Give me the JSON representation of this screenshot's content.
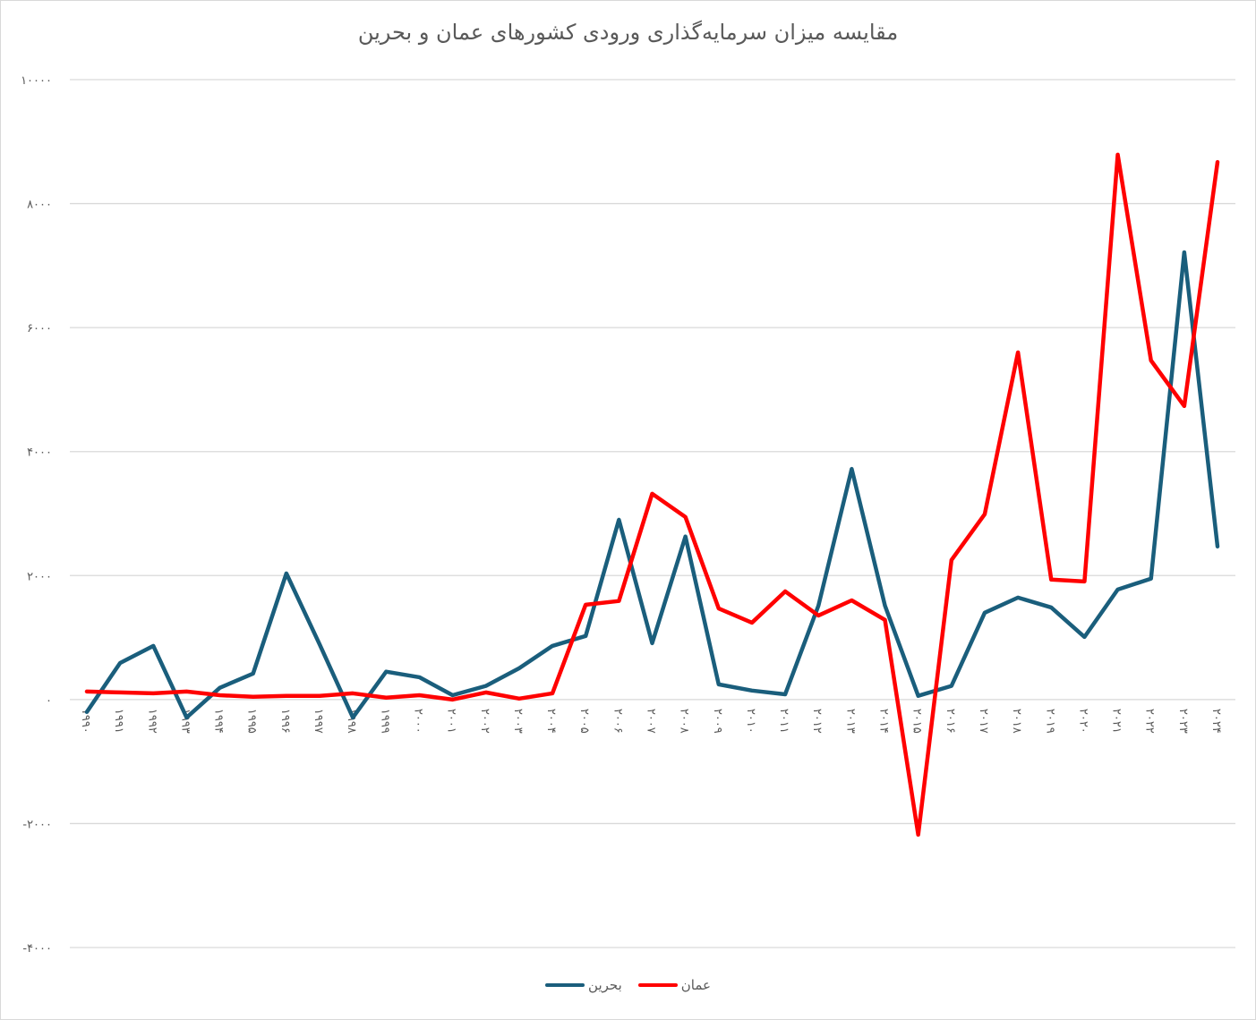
{
  "chart_data": {
    "type": "line",
    "title": "مقایسه میزان سرمایه‌گذاری ورودی کشورهای عمان و بحرین",
    "xlabel": "",
    "ylabel": "",
    "ylim": [
      -4000,
      10000
    ],
    "yticks": [
      -4000,
      -2000,
      0,
      2000,
      4000,
      6000,
      8000,
      10000
    ],
    "ytick_labels": [
      "-۴۰۰۰",
      "-۲۰۰۰",
      "۰",
      "۲۰۰۰",
      "۴۰۰۰",
      "۶۰۰۰",
      "۸۰۰۰",
      "۱۰۰۰۰"
    ],
    "categories": [
      "۱۹۹۰",
      "۱۹۹۱",
      "۱۹۹۲",
      "۱۹۹۳",
      "۱۹۹۴",
      "۱۹۹۵",
      "۱۹۹۶",
      "۱۹۹۷",
      "۱۹۹۸",
      "۱۹۹۹",
      "۲۰۰۰",
      "۲۰۰۱",
      "۲۰۰۲",
      "۲۰۰۳",
      "۲۰۰۴",
      "۲۰۰۵",
      "۲۰۰۶",
      "۲۰۰۷",
      "۲۰۰۸",
      "۲۰۰۹",
      "۲۰۱۰",
      "۲۰۱۱",
      "۲۰۱۲",
      "۲۰۱۳",
      "۲۰۱۴",
      "۲۰۱۵",
      "۲۰۱۶",
      "۲۰۱۷",
      "۲۰۱۸",
      "۲۰۱۹",
      "۲۰۲۰",
      "۲۰۲۱",
      "۲۰۲۲",
      "۲۰۲۳",
      "۲۰۲۴"
    ],
    "grid": true,
    "legend_position": "bottom",
    "series": [
      {
        "name": "بحرین",
        "color": "#1a5e7c",
        "values": [
          -200,
          590,
          865,
          -290,
          190,
          420,
          2035,
          890,
          -290,
          450,
          360,
          70,
          220,
          505,
          865,
          1025,
          2900,
          910,
          2630,
          245,
          145,
          85,
          1515,
          3720,
          1515,
          60,
          220,
          1400,
          1645,
          1485,
          1010,
          1775,
          1950,
          7215,
          2470
        ]
      },
      {
        "name": "عمان",
        "color": "#ff0000",
        "values": [
          130,
          115,
          100,
          130,
          70,
          45,
          60,
          60,
          100,
          30,
          70,
          0,
          115,
          15,
          100,
          1530,
          1590,
          3320,
          2945,
          1470,
          1240,
          1745,
          1355,
          1600,
          1285,
          -2180,
          2250,
          2990,
          5600,
          1935,
          1905,
          8790,
          5470,
          4735,
          8670
        ]
      }
    ]
  }
}
